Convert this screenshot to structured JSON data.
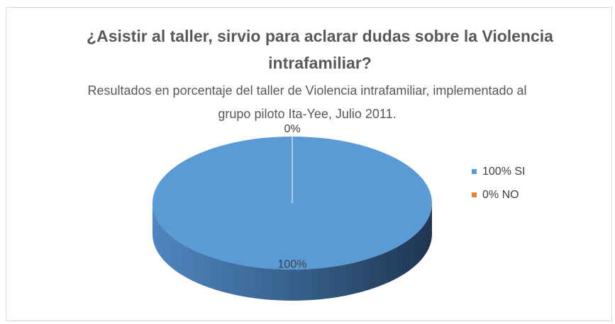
{
  "chart_data": {
    "type": "pie",
    "title": "¿Asistir al taller, sirvio para aclarar dudas sobre la Violencia intrafamiliar?",
    "subtitle": "Resultados en porcentaje del taller de Violencia intrafamiliar, implementado al grupo piloto Ita-Yee, Julio 2011.",
    "categories": [
      "100% SI",
      "0% NO"
    ],
    "values": [
      100,
      0
    ],
    "value_labels": [
      "100%",
      "0%"
    ],
    "colors": [
      "#5b9bd5",
      "#ed7d31"
    ],
    "legend": "right"
  }
}
